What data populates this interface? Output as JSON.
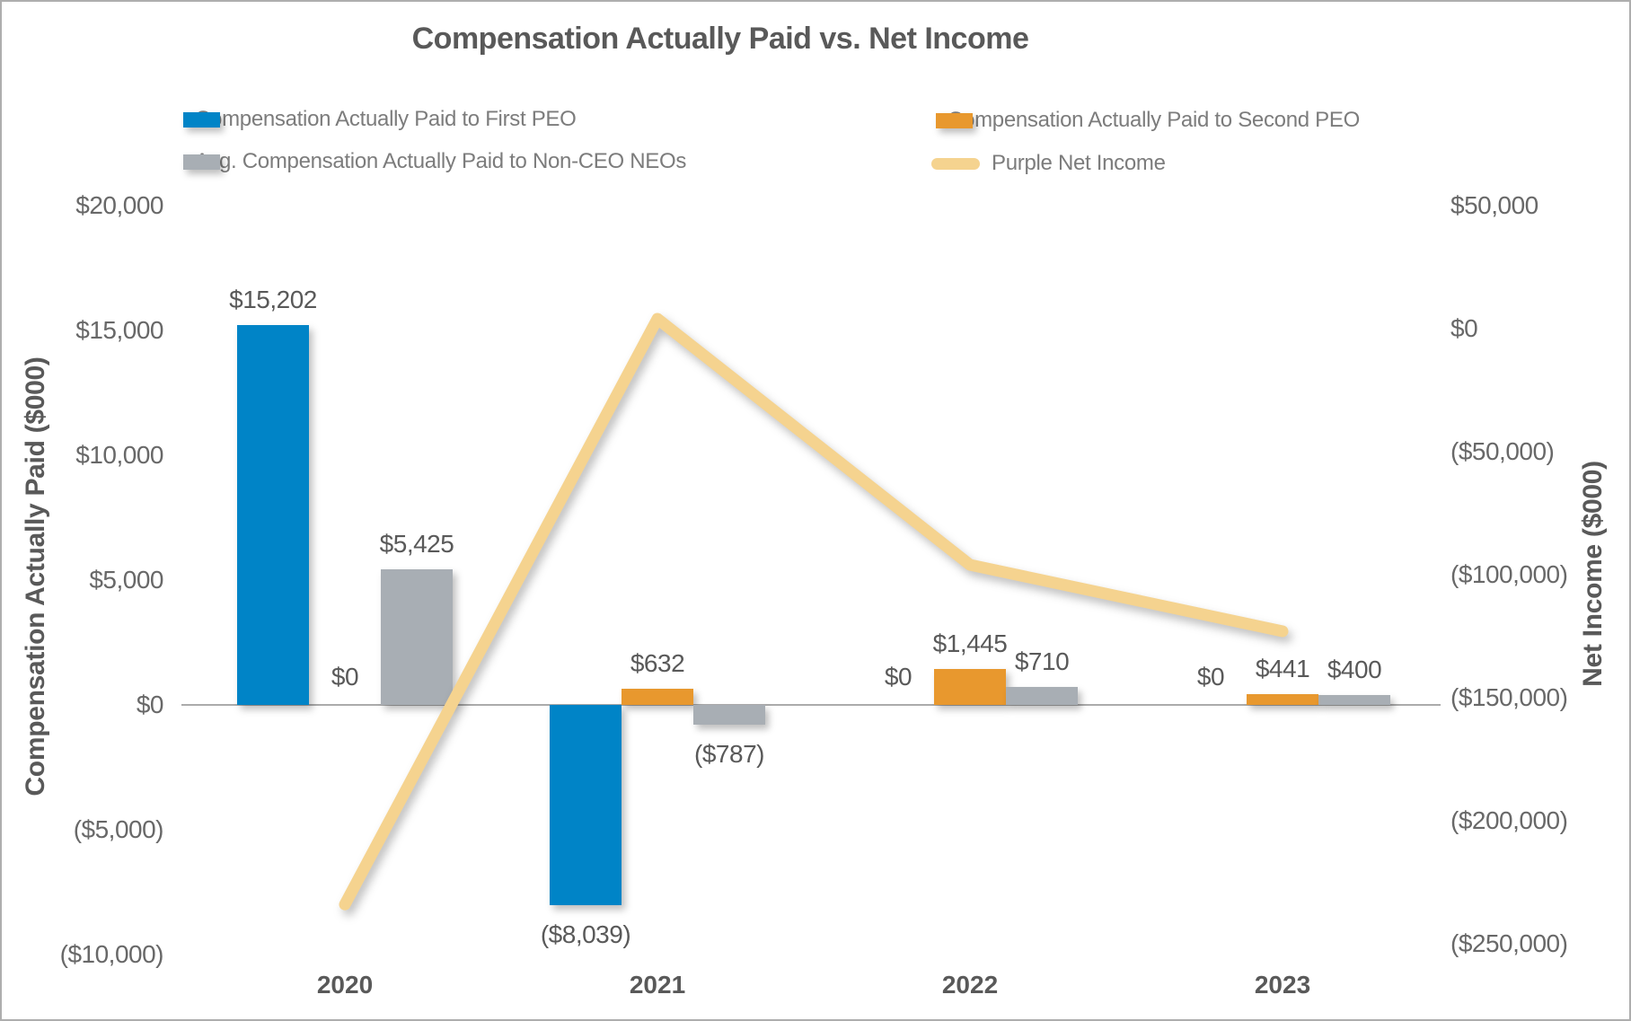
{
  "chart_data": {
    "type": "combo",
    "title": "Compensation Actually Paid vs. Net Income",
    "categories": [
      "2020",
      "2021",
      "2022",
      "2023"
    ],
    "series": [
      {
        "name": "Compensation Actually Paid to First PEO",
        "type": "bar",
        "axis": "left",
        "color": "#0084C7",
        "values": [
          15202,
          -8039,
          0,
          0
        ],
        "labels": [
          "$15,202",
          "($8,039)",
          "$0",
          "$0"
        ]
      },
      {
        "name": "Compensation Actually Paid to Second PEO",
        "type": "bar",
        "axis": "left",
        "color": "#E8982E",
        "values": [
          0,
          632,
          1445,
          441
        ],
        "labels": [
          "$0",
          "$632",
          "$1,445",
          "$441"
        ]
      },
      {
        "name": "Avg. Compensation Actually Paid to Non-CEO NEOs",
        "type": "bar",
        "axis": "left",
        "color": "#A8AEB4",
        "values": [
          5425,
          -787,
          710,
          400
        ],
        "labels": [
          "$5,425",
          "($787)",
          "$710",
          "$400"
        ]
      },
      {
        "name": "Purple Net Income",
        "type": "line",
        "axis": "right",
        "color": "#F5D38F",
        "values": [
          -234000,
          4000,
          -96000,
          -123000
        ],
        "values_estimated_from_pixels": true
      }
    ],
    "left_axis": {
      "label": "Compensation Actually Paid ($000)",
      "ticks": [
        "$20,000",
        "$15,000",
        "$10,000",
        "$5,000",
        "$0",
        "($5,000)",
        "($10,000)"
      ],
      "range": [
        -10000,
        20000
      ],
      "tick_step": 5000
    },
    "right_axis": {
      "label": "Net Income ($000)",
      "ticks": [
        "$50,000",
        "$0",
        "($50,000)",
        "($100,000)",
        "($150,000)",
        "($200,000)",
        "($250,000)"
      ],
      "range": [
        -250000,
        50000
      ],
      "tick_step": 50000
    },
    "legend_position": "top",
    "gridlines": "zero-line-only",
    "colors": {
      "first_peo_blue": "#0084C7",
      "second_peo_orange": "#E8982E",
      "neo_gray": "#A8AEB4",
      "net_income_tan": "#F5D38F",
      "text_dark": "#595959",
      "text_tick": "#686868",
      "text_legend": "#7C7C7C",
      "axis_line": "#ABABAB"
    }
  }
}
